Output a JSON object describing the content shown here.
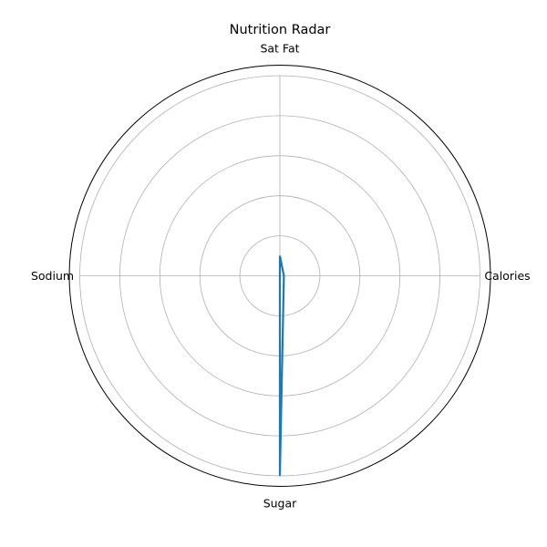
{
  "chart_data": {
    "type": "radar",
    "title": "Nutrition Radar",
    "categories": [
      "Calories",
      "Sat Fat",
      "Sodium",
      "Sugar"
    ],
    "series": [
      {
        "values": [
          0.02,
          0.1,
          0.0,
          1.0
        ]
      }
    ],
    "rlim": [
      0,
      1.0
    ],
    "rticks": [
      0.2,
      0.4,
      0.6,
      0.8,
      1.0
    ],
    "grid": true,
    "legend": "none",
    "colors": {
      "series": "#1f77b4",
      "grid": "#b0b0b0",
      "frame": "#000000"
    }
  }
}
